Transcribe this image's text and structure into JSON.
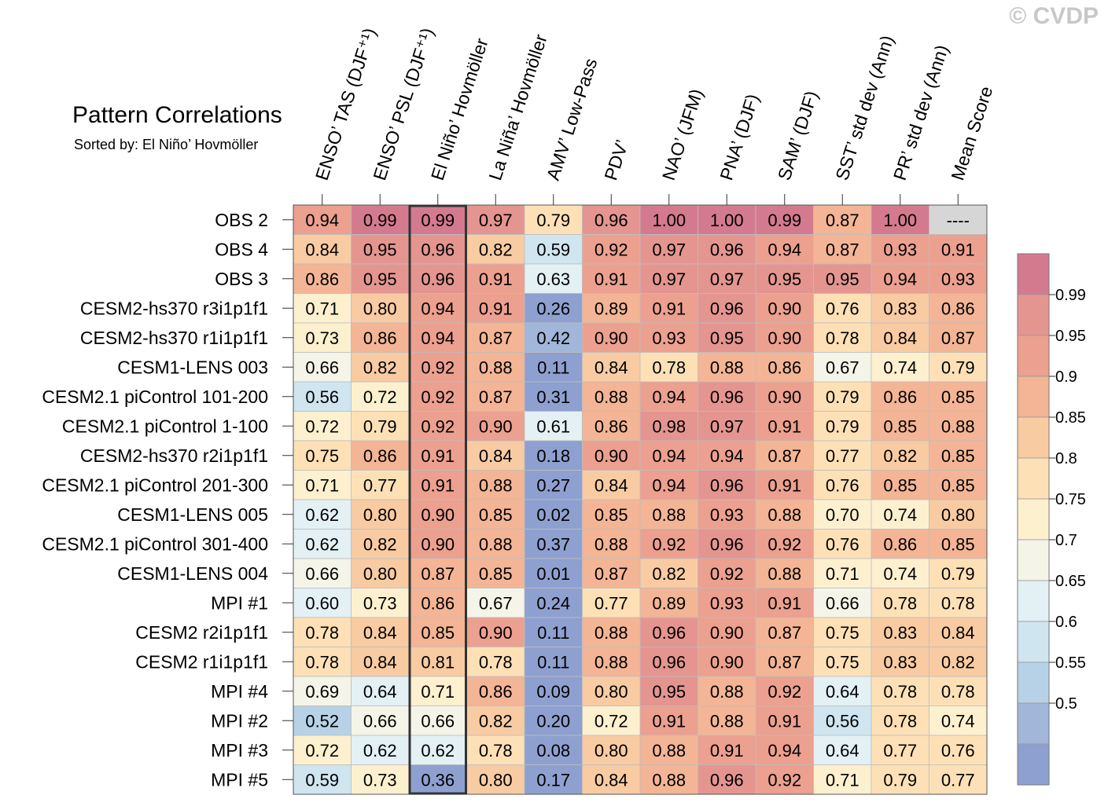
{
  "watermark": "© CVDP",
  "chart_data": {
    "type": "heatmap",
    "title": "Pattern Correlations",
    "subtitle": "Sorted by: El Niño’ Hovmöller",
    "columns": [
      "ENSO’ TAS (DJF⁺¹)",
      "ENSO’ PSL (DJF⁺¹)",
      "El Niño’ Hovmöller",
      "La Niña’ Hovmöller",
      "AMV’ Low-Pass",
      "PDV’",
      "NAO’ (JFM)",
      "PNA’ (DJF)",
      "SAM’ (DJF)",
      "SST’ std dev (Ann)",
      "PR’ std dev (Ann)",
      "Mean Score"
    ],
    "rows": [
      "OBS 2",
      "OBS 4",
      "OBS 3",
      "CESM2-hs370 r3i1p1f1",
      "CESM2-hs370 r1i1p1f1",
      "CESM1-LENS 003",
      "CESM2.1 piControl 101-200",
      "CESM2.1 piControl 1-100",
      "CESM2-hs370 r2i1p1f1",
      "CESM2.1 piControl 201-300",
      "CESM1-LENS 005",
      "CESM2.1 piControl 301-400",
      "CESM1-LENS 004",
      "MPI #1",
      "CESM2 r2i1p1f1",
      "CESM2 r1i1p1f1",
      "MPI #4",
      "MPI #2",
      "MPI #3",
      "MPI #5"
    ],
    "values": [
      [
        "0.94",
        "0.99",
        "0.99",
        "0.97",
        "0.79",
        "0.96",
        "1.00",
        "1.00",
        "0.99",
        "0.87",
        "1.00",
        "----"
      ],
      [
        "0.84",
        "0.95",
        "0.96",
        "0.82",
        "0.59",
        "0.92",
        "0.97",
        "0.96",
        "0.94",
        "0.87",
        "0.93",
        "0.91"
      ],
      [
        "0.86",
        "0.95",
        "0.96",
        "0.91",
        "0.63",
        "0.91",
        "0.97",
        "0.97",
        "0.95",
        "0.95",
        "0.94",
        "0.93"
      ],
      [
        "0.71",
        "0.80",
        "0.94",
        "0.91",
        "0.26",
        "0.89",
        "0.91",
        "0.96",
        "0.90",
        "0.76",
        "0.83",
        "0.86"
      ],
      [
        "0.73",
        "0.86",
        "0.94",
        "0.87",
        "0.42",
        "0.90",
        "0.93",
        "0.95",
        "0.90",
        "0.78",
        "0.84",
        "0.87"
      ],
      [
        "0.66",
        "0.82",
        "0.92",
        "0.88",
        "0.11",
        "0.84",
        "0.78",
        "0.88",
        "0.86",
        "0.67",
        "0.74",
        "0.79"
      ],
      [
        "0.56",
        "0.72",
        "0.92",
        "0.87",
        "0.31",
        "0.88",
        "0.94",
        "0.96",
        "0.90",
        "0.79",
        "0.86",
        "0.85"
      ],
      [
        "0.72",
        "0.79",
        "0.92",
        "0.90",
        "0.61",
        "0.86",
        "0.98",
        "0.97",
        "0.91",
        "0.79",
        "0.85",
        "0.88"
      ],
      [
        "0.75",
        "0.86",
        "0.91",
        "0.84",
        "0.18",
        "0.90",
        "0.94",
        "0.94",
        "0.87",
        "0.77",
        "0.82",
        "0.85"
      ],
      [
        "0.71",
        "0.77",
        "0.91",
        "0.88",
        "0.27",
        "0.84",
        "0.94",
        "0.96",
        "0.91",
        "0.76",
        "0.85",
        "0.85"
      ],
      [
        "0.62",
        "0.80",
        "0.90",
        "0.85",
        "0.02",
        "0.85",
        "0.88",
        "0.93",
        "0.88",
        "0.70",
        "0.74",
        "0.80"
      ],
      [
        "0.62",
        "0.82",
        "0.90",
        "0.88",
        "0.37",
        "0.88",
        "0.92",
        "0.96",
        "0.92",
        "0.76",
        "0.86",
        "0.85"
      ],
      [
        "0.66",
        "0.80",
        "0.87",
        "0.85",
        "0.01",
        "0.87",
        "0.82",
        "0.92",
        "0.88",
        "0.71",
        "0.74",
        "0.79"
      ],
      [
        "0.60",
        "0.73",
        "0.86",
        "0.67",
        "0.24",
        "0.77",
        "0.89",
        "0.93",
        "0.91",
        "0.66",
        "0.78",
        "0.78"
      ],
      [
        "0.78",
        "0.84",
        "0.85",
        "0.90",
        "0.11",
        "0.88",
        "0.96",
        "0.90",
        "0.87",
        "0.75",
        "0.83",
        "0.84"
      ],
      [
        "0.78",
        "0.84",
        "0.81",
        "0.78",
        "0.11",
        "0.88",
        "0.96",
        "0.90",
        "0.87",
        "0.75",
        "0.83",
        "0.82"
      ],
      [
        "0.69",
        "0.64",
        "0.71",
        "0.86",
        "0.09",
        "0.80",
        "0.95",
        "0.88",
        "0.92",
        "0.64",
        "0.78",
        "0.78"
      ],
      [
        "0.52",
        "0.66",
        "0.66",
        "0.82",
        "0.20",
        "0.72",
        "0.91",
        "0.88",
        "0.91",
        "0.56",
        "0.78",
        "0.74"
      ],
      [
        "0.72",
        "0.62",
        "0.62",
        "0.78",
        "0.08",
        "0.80",
        "0.88",
        "0.91",
        "0.94",
        "0.64",
        "0.77",
        "0.76"
      ],
      [
        "0.59",
        "0.73",
        "0.36",
        "0.80",
        "0.17",
        "0.84",
        "0.88",
        "0.96",
        "0.92",
        "0.71",
        "0.79",
        "0.77"
      ]
    ],
    "highlighted_column": "El Niño’ Hovmöller",
    "colorbar": {
      "labels": [
        "0.99",
        "0.95",
        "0.9",
        "0.85",
        "0.8",
        "0.75",
        "0.7",
        "0.65",
        "0.6",
        "0.55",
        "0.5"
      ],
      "colors_top_to_bottom": [
        "#d47a8f",
        "#e49590",
        "#eca08f",
        "#f3b595",
        "#f8cba3",
        "#fde0b6",
        "#fdf0cf",
        "#f5f4e8",
        "#e3f0f4",
        "#cfe5ef",
        "#b7d2e6",
        "#a1b6d9",
        "#8ea0cf"
      ],
      "missing_color": "#d6d6d6"
    }
  }
}
